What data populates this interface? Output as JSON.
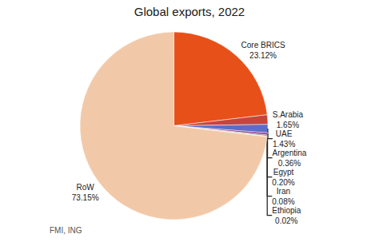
{
  "chart_data": {
    "type": "pie",
    "title": "Global exports, 2022",
    "categories": [
      "Core BRICS",
      "S.Arabia",
      "UAE",
      "Argentina",
      "Egypt",
      "Iran",
      "Ethiopia",
      "RoW"
    ],
    "values": [
      23.12,
      1.65,
      1.43,
      0.36,
      0.2,
      0.08,
      0.02,
      73.15
    ],
    "value_labels": [
      "23.12%",
      "1.65%",
      "1.43%",
      "0.36%",
      "0.20%",
      "0.08%",
      "0.02%",
      "73.15%"
    ],
    "colors": [
      "#E8501A",
      "#C8453A",
      "#5B6DC8",
      "#8B3A8B",
      "#7B6B50",
      "#708090",
      "#D2B48C",
      "#F2C9A8"
    ],
    "data_labels": true,
    "legend": false,
    "annotations": [
      "FMI, ING"
    ]
  }
}
